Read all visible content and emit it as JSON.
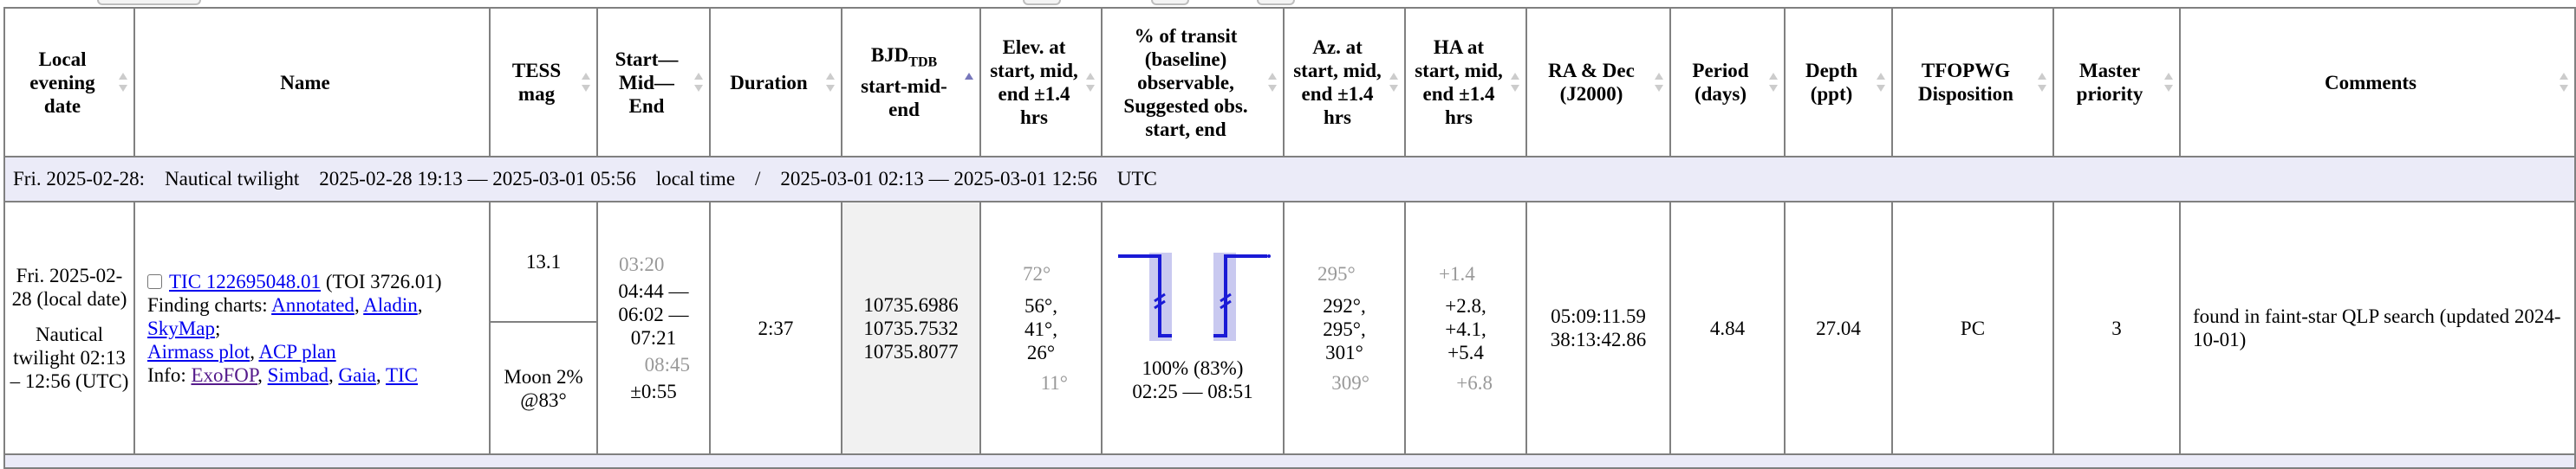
{
  "headers": [
    {
      "text": "Local evening date",
      "sort": "both"
    },
    {
      "text": "Name",
      "sort": "none"
    },
    {
      "text": "TESS mag",
      "sort": "both"
    },
    {
      "text": "Start—Mid—End",
      "sort": "both"
    },
    {
      "text": "Duration",
      "sort": "both"
    },
    {
      "bjd_main": "BJD",
      "bjd_sub": "TDB",
      "bjd_rest": "start-mid-end",
      "sort": "asc"
    },
    {
      "text": "Elev. at start, mid, end ±1.4 hrs",
      "sort": "both"
    },
    {
      "text": "% of transit (baseline) observable, Suggested obs. start, end",
      "sort": "both"
    },
    {
      "text": "Az. at start, mid, end ±1.4 hrs",
      "sort": "both"
    },
    {
      "text": "HA at start, mid, end ±1.4 hrs",
      "sort": "both"
    },
    {
      "text": "RA & Dec (J2000)",
      "sort": "both"
    },
    {
      "text": "Period (days)",
      "sort": "both"
    },
    {
      "text": "Depth (ppt)",
      "sort": "both"
    },
    {
      "text": "TFOPWG Disposition",
      "sort": "both"
    },
    {
      "text": "Master priority",
      "sort": "both"
    },
    {
      "text": "Comments",
      "sort": "both"
    }
  ],
  "night": {
    "day": "Fri. 2025-02-28:",
    "kind": "Nautical twilight",
    "local_range": "2025-02-28 19:13 — 2025-03-01 05:56",
    "local_label": "local time",
    "sep": "/",
    "utc_range": "2025-03-01 02:13 — 2025-03-01 12:56",
    "utc_label": "UTC"
  },
  "row": {
    "date_text": "Fri. 2025-02-28 (local date)",
    "twilight_text": "Nautical twilight 02:13 – 12:56 (UTC)",
    "tic_link": "TIC 122695048.01",
    "toi": "(TOI 3726.01)",
    "finding_label": "Finding charts:",
    "link_annotated": "Annotated",
    "link_aladin": "Aladin",
    "link_skymap": "SkyMap",
    "link_airmass": "Airmass plot",
    "link_acp": "ACP plan",
    "info_label": "Info:",
    "link_exofop": "ExoFOP",
    "link_simbad": "Simbad",
    "link_gaia": "Gaia",
    "link_tic": "TIC",
    "tess_mag": "13.1",
    "moon": "Moon 2% @83°",
    "pre_start": "03:20",
    "times": "04:44 — 06:02 —07:21",
    "post_end": "08:45",
    "time_err": "±0:55",
    "duration": "2:37",
    "bjd_start": "10735.6986",
    "bjd_mid": "10735.7532",
    "bjd_end": "10735.8077",
    "elev_pre": "72°",
    "elev_vals": "56°, 41°, 26°",
    "elev_post": "11°",
    "observable": "100% (83%)",
    "obs_window": "02:25 — 08:51",
    "az_pre": "295°",
    "az_vals": "292°, 295°, 301°",
    "az_post": "309°",
    "ha_pre": "+1.4",
    "ha_vals": "+2.8, +4.1, +5.4",
    "ha_post": "+6.8",
    "ra": "05:09:11.59",
    "dec": "38:13:42.86",
    "period": "4.84",
    "depth": "27.04",
    "disposition": "PC",
    "priority": "3",
    "comment": "found in faint-star QLP search (updated 2024-10-01)"
  },
  "colors": {
    "link": "#0000ee",
    "visited": "#551a8b",
    "band": "#ebebf8",
    "transit_line": "#1a1ad6",
    "transit_fill": "#c9c9f0"
  }
}
